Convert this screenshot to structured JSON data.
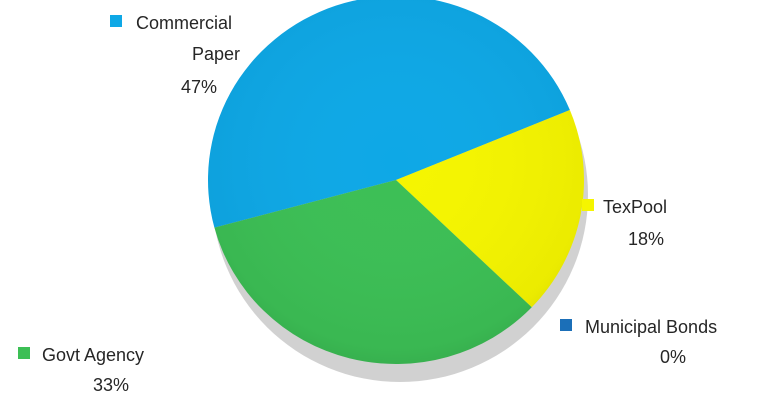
{
  "chart_data": {
    "type": "pie",
    "title": "",
    "legend": "labels beside slices",
    "slices": [
      {
        "label": "Commercial Paper",
        "label_lines": [
          "Commercial",
          "Paper"
        ],
        "value": 47,
        "value_text": "47%",
        "color": "#0ea8e6"
      },
      {
        "label": "TexPool",
        "label_lines": [
          "TexPool"
        ],
        "value": 18,
        "value_text": "18%",
        "color": "#f5f500"
      },
      {
        "label": "Municipal Bonds",
        "label_lines": [
          "Municipal Bonds"
        ],
        "value": 0,
        "value_text": "0%",
        "color": "#1b6fb8"
      },
      {
        "label": "Govt Agency",
        "label_lines": [
          "Govt Agency"
        ],
        "value": 33,
        "value_text": "33%",
        "color": "#3cbf55"
      }
    ]
  }
}
